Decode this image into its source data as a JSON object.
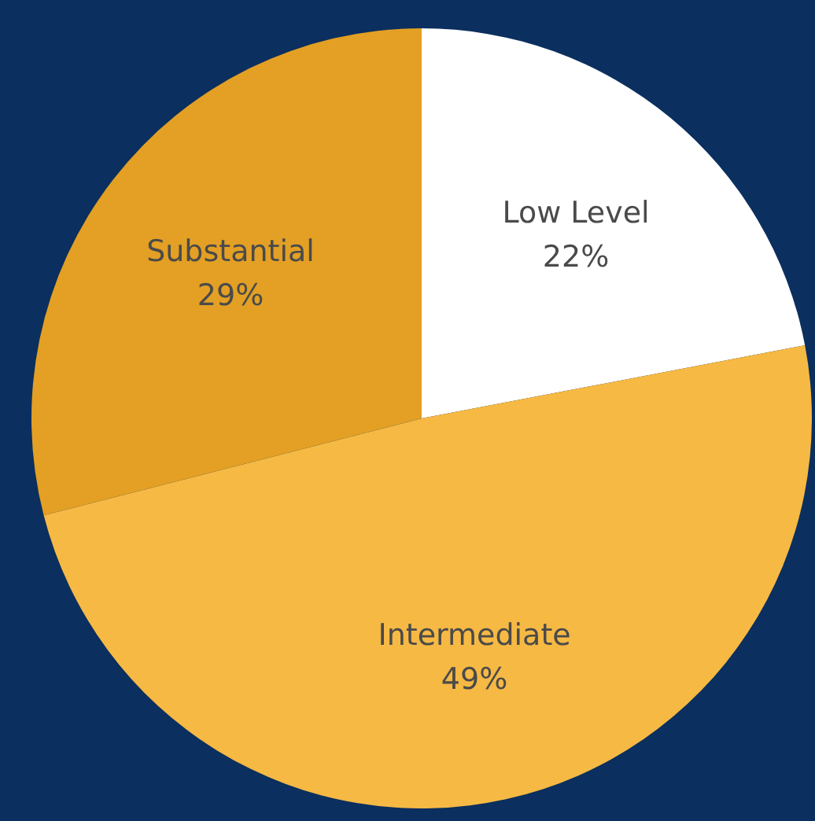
{
  "chart_data": {
    "type": "pie",
    "categories": [
      "Low Level",
      "Intermediate",
      "Substantial"
    ],
    "values": [
      22,
      49,
      29
    ],
    "colors": [
      "#ffffff",
      "#f6b944",
      "#e3a024"
    ],
    "value_labels": [
      "22%",
      "49%",
      "29%"
    ]
  }
}
